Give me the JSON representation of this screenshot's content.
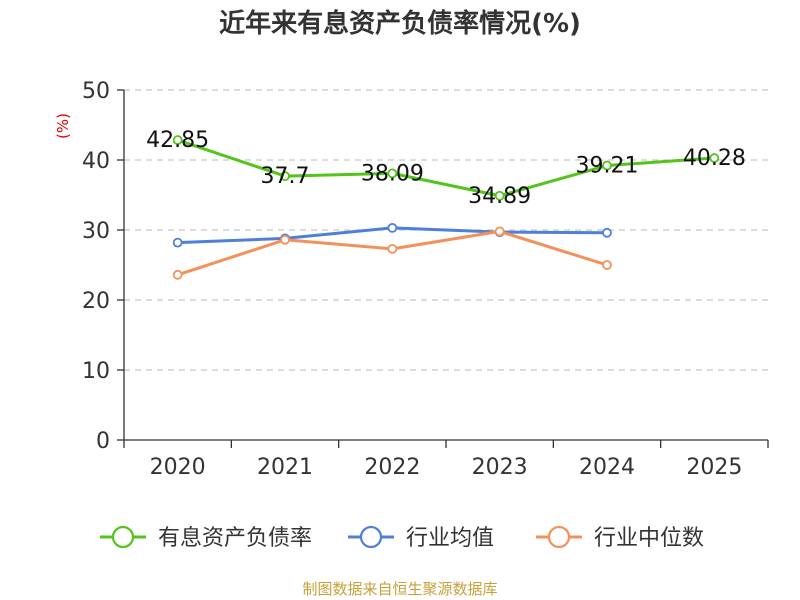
{
  "chart_data": {
    "type": "line",
    "title": "近年来有息资产负债率情况(%)",
    "ylabel": "(%)",
    "categories": [
      "2020",
      "2021",
      "2022",
      "2023",
      "2024",
      "2025"
    ],
    "ylim": [
      0,
      50
    ],
    "yticks": [
      0,
      10,
      20,
      30,
      40,
      50
    ],
    "grid": true,
    "legend_position": "bottom",
    "series": [
      {
        "name": "有息资产负债率",
        "color": "#52c41a",
        "values": [
          42.85,
          37.7,
          38.09,
          34.89,
          39.21,
          40.28
        ],
        "labels": [
          "42.85",
          "37.7",
          "38.09",
          "34.89",
          "39.21",
          "40.28"
        ]
      },
      {
        "name": "行业均值",
        "color": "#4f7fd9",
        "values": [
          28.2,
          28.8,
          30.3,
          29.7,
          29.6,
          null
        ]
      },
      {
        "name": "行业中位数",
        "color": "#f5905a",
        "values": [
          23.6,
          28.6,
          27.3,
          29.8,
          25.0,
          null
        ]
      }
    ],
    "source": "制图数据来自恒生聚源数据库"
  }
}
